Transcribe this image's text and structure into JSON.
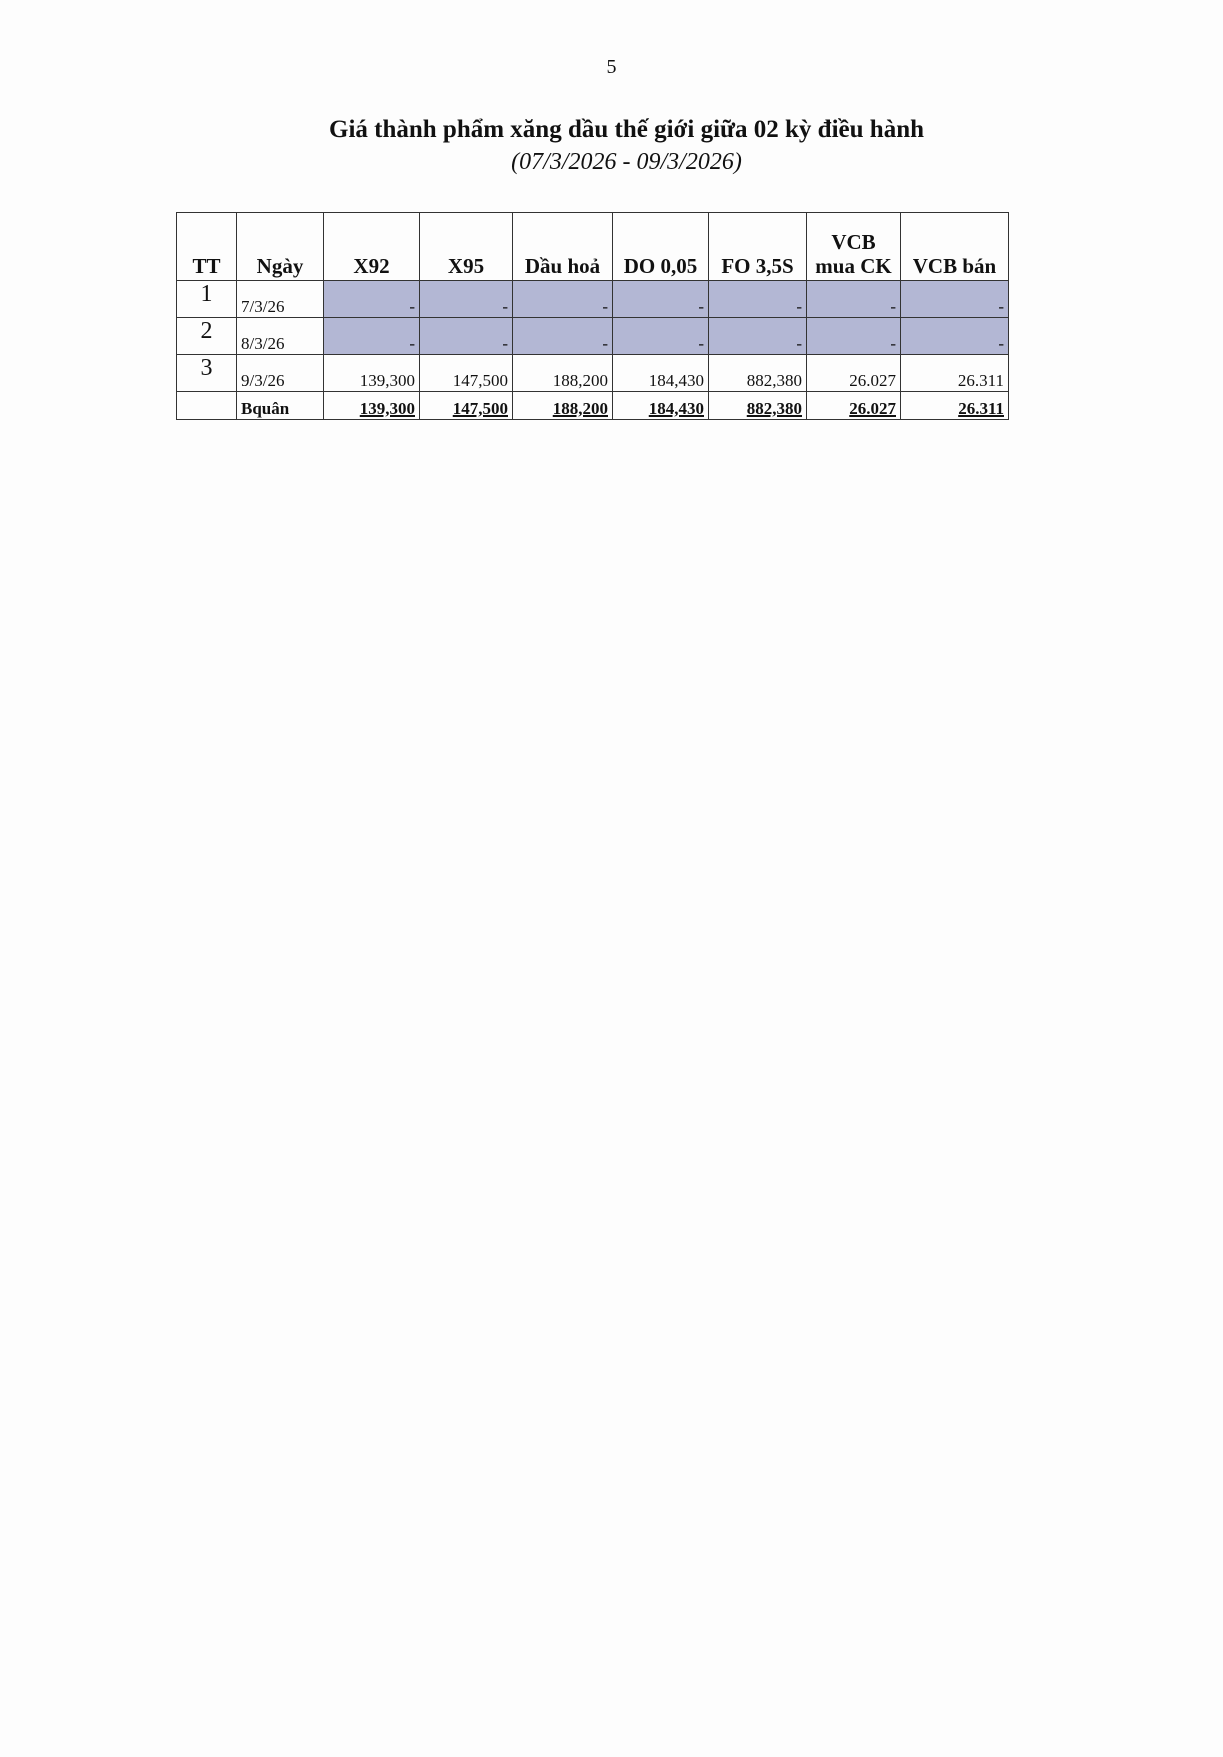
{
  "page_number": "5",
  "title": "Giá thành phẩm xăng dầu thế giới giữa 02 kỳ điều hành",
  "subtitle": "(07/3/2026 - 09/3/2026)",
  "table": {
    "headers": [
      "TT",
      "Ngày",
      "X92",
      "X95",
      "Dầu hoả",
      "DO 0,05",
      "FO 3,5S",
      "VCB mua CK",
      "VCB bán"
    ],
    "rows": [
      {
        "tt": "1",
        "date": "7/3/26",
        "values": [
          "-",
          "-",
          "-",
          "-",
          "-",
          "-",
          "-"
        ],
        "shaded": true
      },
      {
        "tt": "2",
        "date": "8/3/26",
        "values": [
          "-",
          "-",
          "-",
          "-",
          "-",
          "-",
          "-"
        ],
        "shaded": true
      },
      {
        "tt": "3",
        "date": "9/3/26",
        "values": [
          "139,300",
          "147,500",
          "188,200",
          "184,430",
          "882,380",
          "26.027",
          "26.311"
        ],
        "shaded": false
      }
    ],
    "average": {
      "label": "Bquân",
      "values": [
        "139,300",
        "147,500",
        "188,200",
        "184,430",
        "882,380",
        "26.027",
        "26.311"
      ]
    }
  }
}
